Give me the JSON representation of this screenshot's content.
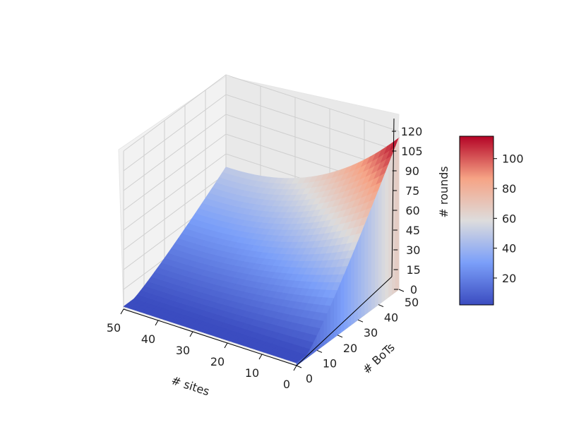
{
  "chart_data": {
    "type": "surface3d",
    "xlabel": "# sites",
    "ylabel": "# BoTs",
    "zlabel": "# rounds",
    "xlim": [
      0,
      50
    ],
    "ylim": [
      0,
      50
    ],
    "zlim": [
      0,
      120
    ],
    "x_ticks": [
      "50",
      "40",
      "30",
      "20",
      "10",
      "0"
    ],
    "y_ticks": [
      "0",
      "10",
      "20",
      "30",
      "40",
      "50"
    ],
    "z_ticks": [
      "0",
      "15",
      "30",
      "45",
      "60",
      "75",
      "90",
      "105",
      "120"
    ],
    "colorbar": {
      "colormap": "coolwarm",
      "range": [
        2,
        115
      ],
      "ticks": [
        "20",
        "40",
        "60",
        "80",
        "100"
      ]
    },
    "surface_samples": [
      {
        "sites": 0,
        "bots": 50,
        "rounds": 115
      },
      {
        "sites": 10,
        "bots": 50,
        "rounds": 90
      },
      {
        "sites": 25,
        "bots": 50,
        "rounds": 70
      },
      {
        "sites": 50,
        "bots": 50,
        "rounds": 50
      },
      {
        "sites": 0,
        "bots": 25,
        "rounds": 45
      },
      {
        "sites": 25,
        "bots": 25,
        "rounds": 40
      },
      {
        "sites": 50,
        "bots": 25,
        "rounds": 25
      },
      {
        "sites": 0,
        "bots": 5,
        "rounds": 2
      },
      {
        "sites": 50,
        "bots": 5,
        "rounds": 2
      }
    ]
  }
}
